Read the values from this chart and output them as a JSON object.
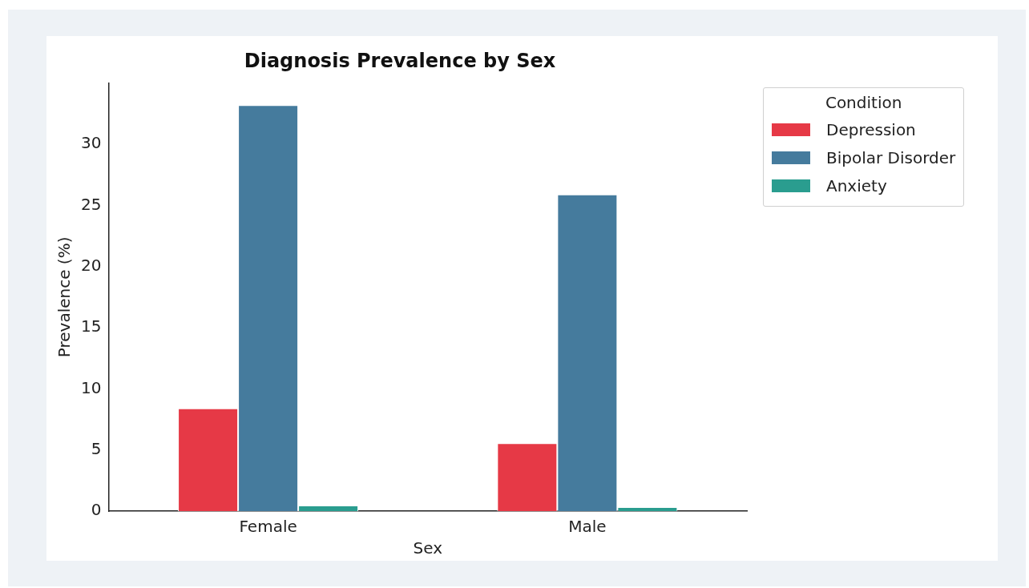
{
  "chart_data": {
    "type": "bar",
    "title": "Diagnosis Prevalence by Sex",
    "xlabel": "Sex",
    "ylabel": "Prevalence (%)",
    "legend_title": "Condition",
    "legend": "top right",
    "categories": [
      "Female",
      "Male"
    ],
    "series": [
      {
        "name": "Depression",
        "color": "#e63946",
        "values": [
          8.4,
          5.55
        ]
      },
      {
        "name": "Bipolar Disorder",
        "color": "#457b9d",
        "values": [
          33.2,
          25.9
        ]
      },
      {
        "name": "Anxiety",
        "color": "#2a9d8f",
        "values": [
          0.46,
          0.33
        ]
      }
    ],
    "ylim": [
      0,
      35
    ],
    "yticks": [
      0,
      5,
      10,
      15,
      20,
      25,
      30
    ]
  }
}
